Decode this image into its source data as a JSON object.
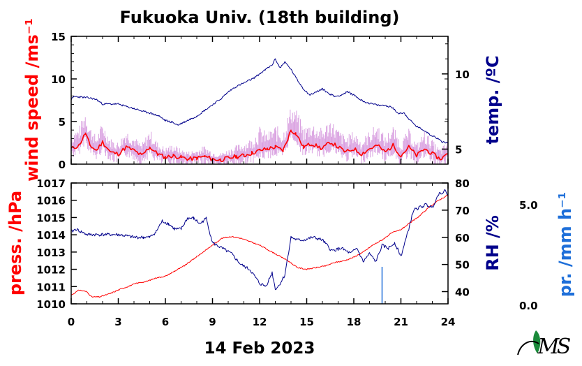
{
  "header": {
    "title": "Fukuoka Univ. (18th building)",
    "date": "14 Feb 2023",
    "logo_label": "MES"
  },
  "colors": {
    "wind_mean": "#ff0000",
    "wind_gust": "#d9a0e0",
    "temperature": "#00008b",
    "pressure": "#ff0000",
    "rh": "#00008b",
    "precip": "#1e6fd9",
    "logo_green": "#1a8a3a"
  },
  "chart_data": [
    {
      "type": "line",
      "title": "Fukuoka Univ. (18th building)",
      "xlabel": "14 Feb 2023",
      "x_unit": "hour",
      "xlim": [
        0,
        24
      ],
      "xticks": [
        "0",
        "3",
        "6",
        "9",
        "12",
        "15",
        "18",
        "21",
        "24"
      ],
      "ylabel": "wind speed /ms⁻¹",
      "ylim": [
        0,
        15
      ],
      "yticks": [
        "0",
        "5",
        "10",
        "15"
      ],
      "y2label": "temp. /ºC",
      "y2lim": [
        4,
        12.5
      ],
      "y2ticks": [
        "5",
        "10"
      ],
      "series": [
        {
          "axis": "left",
          "color": "#ff0000",
          "style": "mean",
          "x": [
            0,
            0.5,
            0.9,
            1.2,
            1.6,
            2,
            2.5,
            3,
            3.5,
            4,
            4.5,
            5,
            5.5,
            6,
            6.5,
            7,
            7.5,
            8,
            8.5,
            9,
            9.5,
            10,
            10.5,
            11,
            11.5,
            12,
            12.5,
            13,
            13.5,
            14,
            14.3,
            14.8,
            15.3,
            16,
            16.5,
            17,
            17.5,
            18,
            18.5,
            19,
            19.5,
            20,
            20.5,
            21,
            21.5,
            22,
            22.5,
            23,
            23.5,
            24
          ],
          "y": [
            1.8,
            2.2,
            3.6,
            2.2,
            1.6,
            2.6,
            1.4,
            1.2,
            2.0,
            1.6,
            1.0,
            2.0,
            1.2,
            0.8,
            1.0,
            0.8,
            0.6,
            0.7,
            0.9,
            0.6,
            0.5,
            0.7,
            0.9,
            1.0,
            1.3,
            1.6,
            1.8,
            2.0,
            1.6,
            4.0,
            3.6,
            2.0,
            2.4,
            1.8,
            2.6,
            2.0,
            1.4,
            1.8,
            1.2,
            1.8,
            2.2,
            1.4,
            2.2,
            1.0,
            2.0,
            1.0,
            1.8,
            1.2,
            0.6,
            1.2
          ]
        },
        {
          "axis": "left",
          "color": "#d9a0e0",
          "style": "gust",
          "x": [
            0,
            0.5,
            0.9,
            1.2,
            1.6,
            2,
            2.5,
            3,
            3.5,
            4,
            4.5,
            5,
            5.5,
            6,
            6.5,
            7,
            7.5,
            8,
            8.5,
            9,
            9.5,
            10,
            10.5,
            11,
            11.5,
            12,
            12.5,
            13,
            13.5,
            14,
            14.3,
            14.8,
            15.3,
            16,
            16.5,
            17,
            17.5,
            18,
            18.5,
            19,
            19.5,
            20,
            20.5,
            21,
            21.5,
            22,
            22.5,
            23,
            23.5,
            24
          ],
          "y": [
            3.5,
            4.0,
            6.0,
            4.2,
            3.0,
            4.6,
            2.8,
            2.4,
            3.8,
            3.0,
            2.2,
            3.8,
            2.4,
            1.8,
            2.2,
            1.6,
            1.4,
            1.6,
            2.0,
            1.4,
            1.2,
            1.6,
            2.0,
            2.4,
            2.8,
            4.0,
            3.4,
            4.2,
            3.6,
            6.4,
            6.2,
            4.0,
            4.6,
            3.8,
            5.0,
            3.8,
            3.0,
            3.6,
            2.6,
            3.6,
            4.4,
            3.0,
            4.2,
            2.4,
            3.8,
            2.2,
            3.6,
            2.6,
            1.6,
            2.6
          ]
        },
        {
          "axis": "right",
          "color": "#00008b",
          "style": "temperature",
          "x": [
            0,
            0.2,
            1.2,
            1.6,
            2.0,
            3.0,
            3.6,
            4.0,
            4.6,
            5.0,
            5.6,
            6.0,
            6.4,
            6.8,
            7.2,
            7.6,
            8.0,
            8.4,
            8.8,
            9.2,
            9.6,
            10.0,
            10.4,
            10.8,
            11.2,
            11.6,
            12.0,
            12.4,
            12.8,
            13.0,
            13.3,
            13.6,
            14.0,
            14.4,
            14.8,
            15.2,
            15.6,
            16.0,
            16.4,
            16.8,
            17.2,
            17.6,
            18.0,
            18.4,
            18.8,
            19.2,
            19.6,
            20.0,
            20.4,
            20.8,
            21.2,
            21.6,
            22.0,
            22.4,
            22.8,
            23.2,
            23.6,
            24.0
          ],
          "y": [
            8.3,
            8.5,
            8.4,
            8.3,
            8.0,
            8.0,
            7.8,
            7.7,
            7.5,
            7.4,
            7.2,
            6.9,
            6.8,
            6.6,
            6.8,
            7.0,
            7.2,
            7.5,
            7.8,
            8.1,
            8.4,
            8.8,
            9.1,
            9.3,
            9.5,
            9.7,
            10.0,
            10.3,
            10.6,
            11.0,
            10.4,
            10.8,
            10.3,
            9.6,
            9.0,
            8.6,
            8.8,
            9.0,
            8.7,
            8.5,
            8.6,
            8.8,
            8.6,
            8.3,
            8.1,
            8.0,
            7.9,
            7.9,
            7.8,
            7.4,
            7.4,
            6.9,
            6.5,
            6.3,
            6.0,
            5.8,
            5.5,
            5.4
          ]
        }
      ]
    },
    {
      "type": "line",
      "xlabel": "14 Feb 2023",
      "x_unit": "hour",
      "xlim": [
        0,
        24
      ],
      "xticks": [
        "0",
        "3",
        "6",
        "9",
        "12",
        "15",
        "18",
        "21",
        "24"
      ],
      "ylabel": "press. /hPa",
      "ylim": [
        1010,
        1017
      ],
      "yticks": [
        "1010",
        "1011",
        "1012",
        "1013",
        "1014",
        "1015",
        "1016",
        "1017"
      ],
      "y2label": "RH /%",
      "y2lim": [
        35.5,
        80
      ],
      "y2ticks": [
        "40",
        "50",
        "60",
        "70",
        "80"
      ],
      "y3label": "pr. /mm h⁻¹",
      "y3ticks": [
        "0.0",
        "5.0"
      ],
      "series": [
        {
          "axis": "left",
          "color": "#ff0000",
          "style": "pressure",
          "x": [
            0,
            0.5,
            1.0,
            1.3,
            1.8,
            2.5,
            3.0,
            3.6,
            4.2,
            4.8,
            5.4,
            6.0,
            6.6,
            7.2,
            7.8,
            8.4,
            9.0,
            9.6,
            10.2,
            10.8,
            11.4,
            12.0,
            12.6,
            13.2,
            13.8,
            14.4,
            15.0,
            15.6,
            16.2,
            16.8,
            17.4,
            18.0,
            18.6,
            19.2,
            19.8,
            20.4,
            21.0,
            21.6,
            22.2,
            22.8,
            23.4,
            24.0
          ],
          "y": [
            1010.5,
            1010.8,
            1010.7,
            1010.4,
            1010.4,
            1010.6,
            1010.8,
            1011.0,
            1011.2,
            1011.3,
            1011.5,
            1011.6,
            1011.9,
            1012.2,
            1012.6,
            1013.0,
            1013.4,
            1013.8,
            1013.9,
            1013.8,
            1013.6,
            1013.4,
            1013.1,
            1012.8,
            1012.5,
            1012.1,
            1012.0,
            1012.1,
            1012.2,
            1012.4,
            1012.5,
            1012.7,
            1013.0,
            1013.4,
            1013.7,
            1014.1,
            1014.3,
            1014.7,
            1015.1,
            1015.6,
            1016.0,
            1016.3
          ]
        },
        {
          "axis": "right",
          "color": "#00008b",
          "style": "rh",
          "x": [
            0,
            0.3,
            1.0,
            2.0,
            3.0,
            4.0,
            4.6,
            5.0,
            5.4,
            5.8,
            6.2,
            6.6,
            7.0,
            7.4,
            7.8,
            8.2,
            8.6,
            9.0,
            9.6,
            10.2,
            10.8,
            11.4,
            12.0,
            12.4,
            12.8,
            13.0,
            13.2,
            13.6,
            14.0,
            14.4,
            14.8,
            15.4,
            16.0,
            16.6,
            17.2,
            17.8,
            18.2,
            18.6,
            19.0,
            19.4,
            19.8,
            20.2,
            20.6,
            21.0,
            21.4,
            21.8,
            22.2,
            22.6,
            23.0,
            23.4,
            23.8,
            24.0
          ],
          "y": [
            62,
            63,
            61,
            61,
            61,
            60,
            60,
            60,
            62,
            66,
            65,
            63,
            63,
            67,
            67,
            65,
            67,
            58,
            56,
            54,
            50,
            48,
            43,
            42,
            47,
            41,
            42,
            46,
            60,
            59,
            59,
            60,
            59,
            55,
            56,
            54,
            56,
            51,
            54,
            51,
            57,
            56,
            58,
            53,
            61,
            70,
            71,
            72,
            71,
            76,
            77,
            76
          ]
        },
        {
          "axis": "precip",
          "color": "#1e6fd9",
          "style": "bars",
          "x": [
            19.8
          ],
          "y": [
            2.5
          ]
        }
      ]
    }
  ]
}
